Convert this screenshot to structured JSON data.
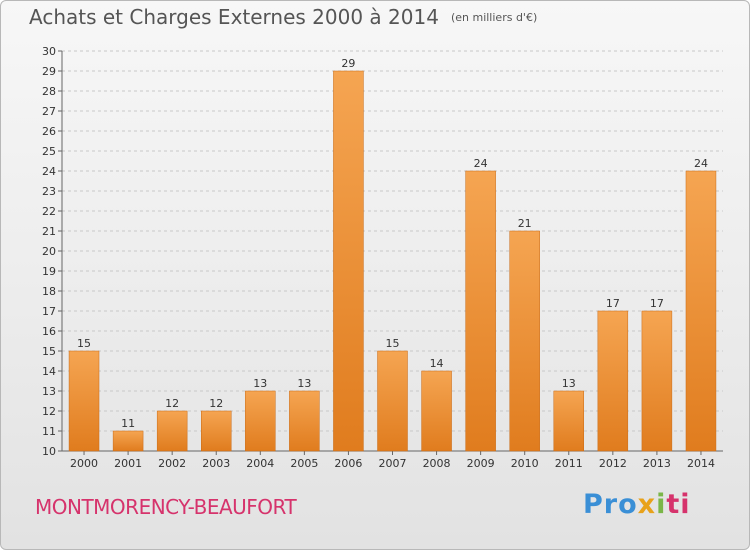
{
  "title": "Achats et Charges Externes 2000 à 2014",
  "unit": "(en milliers d'€)",
  "commune": "MONTMORENCY-BEAUFORT",
  "brand": {
    "parts": [
      "Pro",
      "x",
      "i",
      "ti"
    ]
  },
  "colors": {
    "bar_top": "#f5a552",
    "bar_bottom": "#e07c1e",
    "bar_edge": "#c96a15",
    "commune": "#d6336c"
  },
  "chart_data": {
    "type": "bar",
    "categories": [
      "2000",
      "2001",
      "2002",
      "2003",
      "2004",
      "2005",
      "2006",
      "2007",
      "2008",
      "2009",
      "2010",
      "2011",
      "2012",
      "2013",
      "2014"
    ],
    "values": [
      15,
      11,
      12,
      12,
      13,
      13,
      29,
      15,
      14,
      24,
      21,
      13,
      17,
      17,
      24
    ],
    "ylim": [
      10,
      30
    ],
    "yticks": [
      10,
      11,
      12,
      13,
      14,
      15,
      16,
      17,
      18,
      19,
      20,
      21,
      22,
      23,
      24,
      25,
      26,
      27,
      28,
      29,
      30
    ],
    "grid": "horizontal-dashed",
    "legend": "none"
  }
}
